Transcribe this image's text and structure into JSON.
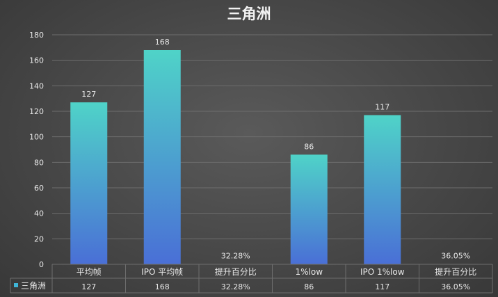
{
  "chart_data": {
    "type": "bar",
    "title": "三角洲",
    "categories": [
      "平均帧",
      "IPO 平均帧",
      "提升百分比",
      "1%low",
      "IPO 1%low",
      "提升百分比"
    ],
    "series": [
      {
        "name": "三角洲",
        "values": [
          127,
          168,
          0.3228,
          86,
          117,
          0.3605
        ],
        "data_labels": [
          "127",
          "168",
          "32.28%",
          "86",
          "117",
          "36.05%"
        ],
        "table_values": [
          "127",
          "168",
          "32.28%",
          "86",
          "117",
          "36.05%"
        ]
      }
    ],
    "ylim": [
      0,
      180
    ],
    "y_ticks": [
      0,
      20,
      40,
      60,
      80,
      100,
      120,
      140,
      160,
      180
    ],
    "grid": true,
    "legend": "data-table",
    "colors": {
      "bar_top": "#4fd3c8",
      "bar_bottom": "#4a6fd6",
      "legend_marker": "#3fb6d8",
      "grid": "#6e6e6e",
      "text": "#e8e8e8"
    }
  }
}
